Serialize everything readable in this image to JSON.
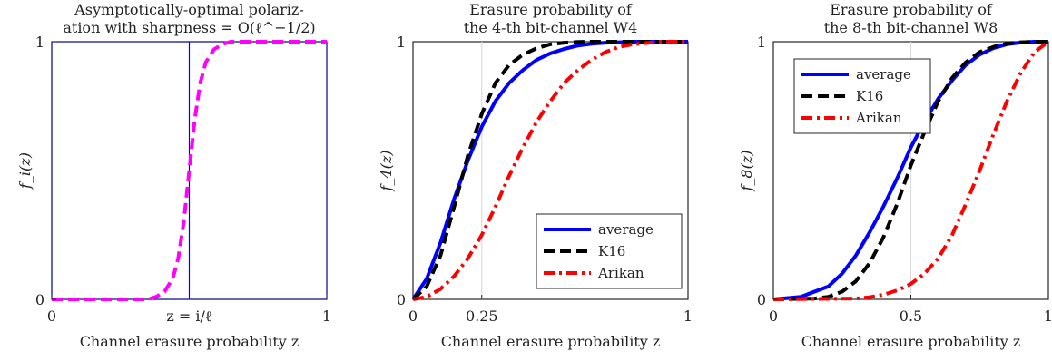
{
  "chart_data": [
    {
      "type": "line",
      "title": [
        "Asymptotically-optimal polariz-",
        "ation with sharpness = O(ℓ^−1/2)"
      ],
      "xlabel": "Channel erasure probability z",
      "ylabel": "f_i(z)",
      "xlim": [
        0,
        1
      ],
      "ylim": [
        0,
        1
      ],
      "x_ticks": [
        {
          "value": 0,
          "label": "0"
        },
        {
          "value": 0.5,
          "label": "z = i/ℓ"
        },
        {
          "value": 1,
          "label": "1"
        }
      ],
      "y_ticks": [
        {
          "value": 0,
          "label": "0"
        },
        {
          "value": 1,
          "label": "1"
        }
      ],
      "vertical_line": 0.5,
      "series": [
        {
          "color": "#ff00ff",
          "style": "dashed",
          "x": [
            0,
            0.35,
            0.38,
            0.41,
            0.44,
            0.46,
            0.48,
            0.5,
            0.52,
            0.54,
            0.56,
            0.59,
            0.62,
            0.65,
            0.7,
            1.0
          ],
          "y": [
            0,
            0,
            0.01,
            0.03,
            0.08,
            0.16,
            0.3,
            0.5,
            0.7,
            0.84,
            0.92,
            0.97,
            0.99,
            1.0,
            1.0,
            1.0
          ]
        }
      ]
    },
    {
      "type": "line",
      "title": [
        "Erasure probability of",
        "the 4-th bit-channel W4"
      ],
      "xlabel": "Channel erasure probability z",
      "ylabel": "f_4(z)",
      "xlim": [
        0,
        1
      ],
      "ylim": [
        0,
        1
      ],
      "x_ticks": [
        {
          "value": 0,
          "label": "0"
        },
        {
          "value": 0.25,
          "label": "0.25"
        },
        {
          "value": 1,
          "label": "1"
        }
      ],
      "y_ticks": [
        {
          "value": 0,
          "label": "0"
        },
        {
          "value": 1,
          "label": "1"
        }
      ],
      "vertical_line": 0.25,
      "legend": {
        "placement": "bottom-right"
      },
      "series": [
        {
          "name": "average",
          "color": "#0000ff",
          "style": "solid",
          "x": [
            0,
            0.05,
            0.1,
            0.15,
            0.2,
            0.25,
            0.3,
            0.35,
            0.4,
            0.45,
            0.5,
            0.55,
            0.6,
            0.65,
            0.7,
            0.75,
            0.8,
            0.9,
            1.0
          ],
          "y": [
            0,
            0.08,
            0.22,
            0.39,
            0.54,
            0.67,
            0.77,
            0.84,
            0.89,
            0.93,
            0.955,
            0.972,
            0.985,
            0.992,
            0.996,
            0.998,
            1.0,
            1.0,
            1.0
          ]
        },
        {
          "name": "K16",
          "color": "#000000",
          "style": "dashed",
          "x": [
            0,
            0.05,
            0.1,
            0.15,
            0.2,
            0.25,
            0.3,
            0.35,
            0.4,
            0.45,
            0.5,
            0.55,
            0.6,
            0.65,
            0.7,
            0.8,
            1.0
          ],
          "y": [
            0,
            0.05,
            0.17,
            0.36,
            0.56,
            0.72,
            0.84,
            0.91,
            0.95,
            0.975,
            0.99,
            0.996,
            0.999,
            1.0,
            1.0,
            1.0,
            1.0
          ]
        },
        {
          "name": "Arikan",
          "color": "#ff0000",
          "style": "dash-dot",
          "x": [
            0,
            0.05,
            0.1,
            0.15,
            0.2,
            0.25,
            0.3,
            0.35,
            0.4,
            0.45,
            0.5,
            0.55,
            0.6,
            0.65,
            0.7,
            0.75,
            0.8,
            0.85,
            0.9,
            1.0
          ],
          "y": [
            0,
            0.01,
            0.04,
            0.09,
            0.16,
            0.25,
            0.36,
            0.48,
            0.59,
            0.69,
            0.77,
            0.84,
            0.89,
            0.93,
            0.96,
            0.98,
            0.99,
            0.995,
            1.0,
            1.0
          ]
        }
      ]
    },
    {
      "type": "line",
      "title": [
        "Erasure probability of",
        "the 8-th bit-channel W8"
      ],
      "xlabel": "Channel erasure probability z",
      "ylabel": "f_8(z)",
      "xlim": [
        0,
        1
      ],
      "ylim": [
        0,
        1
      ],
      "x_ticks": [
        {
          "value": 0,
          "label": "0"
        },
        {
          "value": 0.5,
          "label": "0.5"
        },
        {
          "value": 1,
          "label": "1"
        }
      ],
      "y_ticks": [
        {
          "value": 0,
          "label": "0"
        },
        {
          "value": 1,
          "label": "1"
        }
      ],
      "vertical_line": 0.5,
      "legend": {
        "placement": "top-left"
      },
      "series": [
        {
          "name": "average",
          "color": "#0000ff",
          "style": "solid",
          "x": [
            0,
            0.1,
            0.2,
            0.25,
            0.3,
            0.35,
            0.4,
            0.45,
            0.5,
            0.55,
            0.6,
            0.65,
            0.7,
            0.75,
            0.8,
            0.85,
            0.9,
            0.95,
            1.0
          ],
          "y": [
            0,
            0.01,
            0.05,
            0.1,
            0.17,
            0.26,
            0.36,
            0.47,
            0.59,
            0.69,
            0.78,
            0.85,
            0.91,
            0.95,
            0.975,
            0.99,
            0.997,
            1.0,
            1.0
          ]
        },
        {
          "name": "K16",
          "color": "#000000",
          "style": "dashed",
          "x": [
            0,
            0.15,
            0.2,
            0.25,
            0.3,
            0.35,
            0.4,
            0.45,
            0.5,
            0.55,
            0.6,
            0.65,
            0.7,
            0.75,
            0.8,
            0.85,
            0.9,
            0.95,
            1.0
          ],
          "y": [
            0,
            0.003,
            0.01,
            0.03,
            0.07,
            0.14,
            0.24,
            0.37,
            0.52,
            0.65,
            0.77,
            0.86,
            0.92,
            0.96,
            0.98,
            0.993,
            0.998,
            1.0,
            1.0
          ]
        },
        {
          "name": "Arikan",
          "color": "#ff0000",
          "style": "dash-dot",
          "x": [
            0,
            0.3,
            0.35,
            0.4,
            0.45,
            0.5,
            0.55,
            0.6,
            0.65,
            0.7,
            0.75,
            0.8,
            0.85,
            0.9,
            0.95,
            1.0
          ],
          "y": [
            0,
            0.003,
            0.008,
            0.018,
            0.035,
            0.06,
            0.1,
            0.16,
            0.25,
            0.37,
            0.5,
            0.64,
            0.77,
            0.88,
            0.96,
            1.0
          ]
        }
      ]
    }
  ]
}
